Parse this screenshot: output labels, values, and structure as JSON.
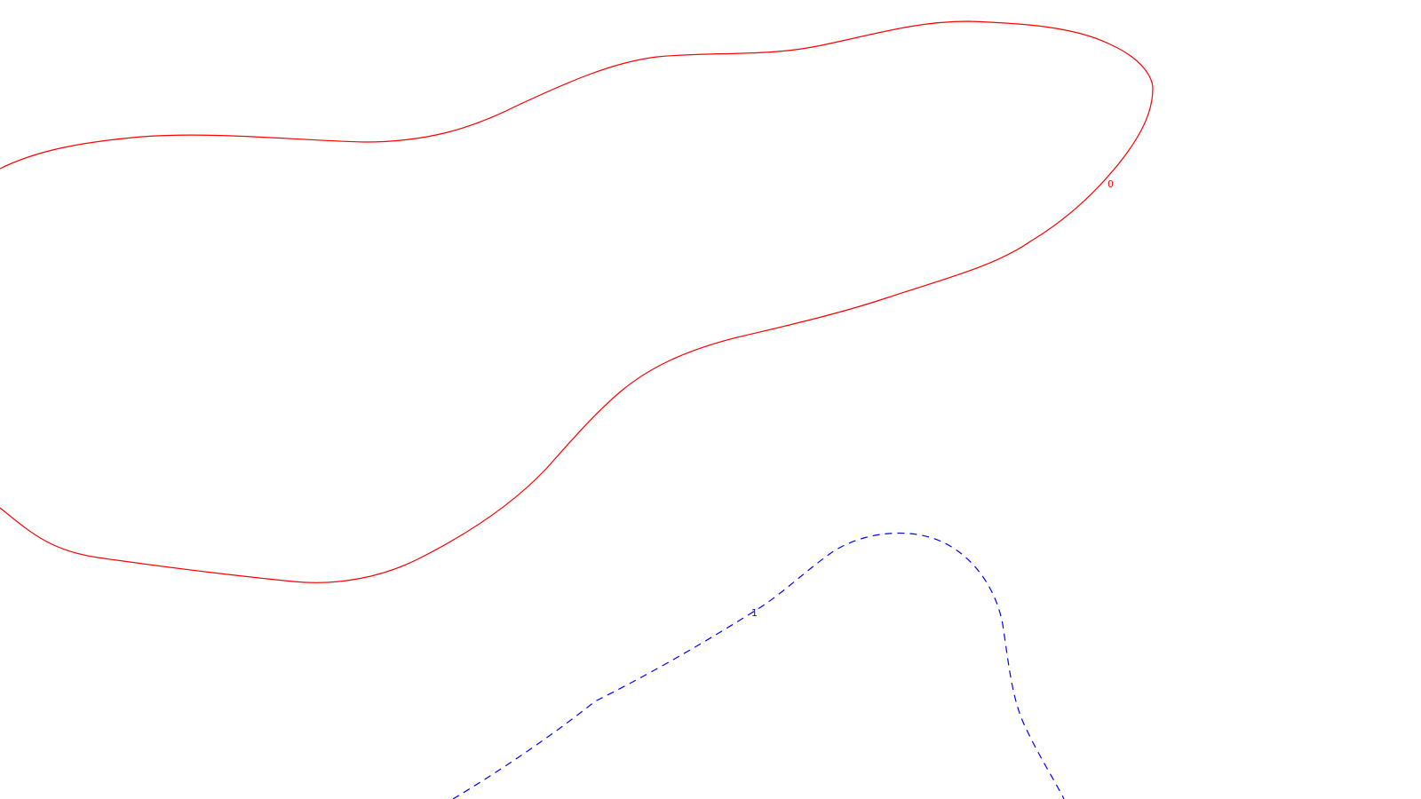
{
  "contours": [
    {
      "name": "contour-0",
      "label": "0",
      "color": "#ff0000",
      "style": "solid"
    },
    {
      "name": "contour-1",
      "label": "1",
      "color": "#0000ff",
      "style": "dashed"
    }
  ]
}
